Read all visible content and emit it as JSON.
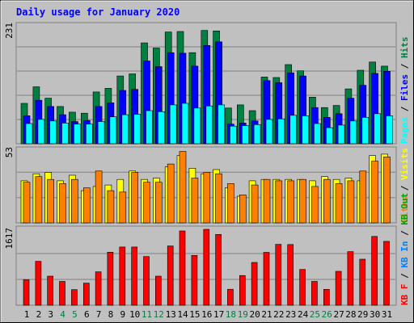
{
  "chart_data": [
    {
      "type": "bar",
      "title": "Daily usage for January 2020",
      "categories": [
        "1",
        "2",
        "3",
        "4",
        "5",
        "6",
        "7",
        "8",
        "9",
        "10",
        "11",
        "12",
        "13",
        "14",
        "15",
        "16",
        "17",
        "18",
        "19",
        "20",
        "21",
        "22",
        "23",
        "24",
        "25",
        "26",
        "27",
        "28",
        "29",
        "30",
        "31"
      ],
      "weekend_days": [
        "4",
        "5",
        "11",
        "12",
        "18",
        "19",
        "25",
        "26"
      ],
      "ymax_label": "231",
      "ylim": [
        0,
        231
      ],
      "legend_placement": "right",
      "grid": true,
      "series": [
        {
          "name": "Hits",
          "color": "#008040",
          "values": [
            78,
            110,
            88,
            72,
            61,
            59,
            100,
            107,
            131,
            135,
            195,
            185,
            216,
            217,
            176,
            219,
            218,
            69,
            75,
            64,
            129,
            128,
            153,
            141,
            90,
            70,
            74,
            106,
            142,
            158,
            150
          ]
        },
        {
          "name": "Files",
          "color": "#0000ff",
          "values": [
            54,
            84,
            72,
            56,
            43,
            45,
            72,
            79,
            103,
            105,
            160,
            149,
            176,
            175,
            150,
            190,
            197,
            38,
            40,
            44,
            122,
            118,
            137,
            131,
            70,
            51,
            58,
            88,
            113,
            136,
            140
          ]
        },
        {
          "name": "Pages",
          "color": "#00ffff",
          "values": [
            39,
            47,
            44,
            40,
            38,
            38,
            43,
            52,
            56,
            57,
            64,
            62,
            75,
            78,
            69,
            73,
            75,
            34,
            35,
            37,
            47,
            48,
            55,
            54,
            39,
            31,
            36,
            44,
            51,
            58,
            54
          ]
        }
      ]
    },
    {
      "type": "bar",
      "categories": [
        "1",
        "2",
        "3",
        "4",
        "5",
        "6",
        "7",
        "8",
        "9",
        "10",
        "11",
        "12",
        "13",
        "14",
        "15",
        "16",
        "17",
        "18",
        "19",
        "20",
        "21",
        "22",
        "23",
        "24",
        "25",
        "26",
        "27",
        "28",
        "29",
        "30",
        "31"
      ],
      "ymax_label": "53",
      "ylim": [
        0,
        53
      ],
      "legend_placement": "right",
      "grid": true,
      "series": [
        {
          "name": "Visits",
          "color": "#ffff00",
          "values": [
            30,
            35,
            36,
            30,
            34,
            23,
            26,
            27,
            31,
            37,
            31,
            32,
            40,
            48,
            39,
            35,
            38,
            25,
            19,
            30,
            31,
            31,
            31,
            31,
            30,
            33,
            31,
            32,
            30,
            48,
            49
          ]
        },
        {
          "name": "Sites",
          "color": "#ff8000",
          "values": [
            29,
            33,
            31,
            28,
            31,
            25,
            37,
            23,
            22,
            36,
            29,
            29,
            42,
            51,
            32,
            36,
            35,
            28,
            20,
            27,
            31,
            30,
            30,
            31,
            26,
            31,
            28,
            30,
            37,
            44,
            47
          ]
        }
      ]
    },
    {
      "type": "bar",
      "categories": [
        "1",
        "2",
        "3",
        "4",
        "5",
        "6",
        "7",
        "8",
        "9",
        "10",
        "11",
        "12",
        "13",
        "14",
        "15",
        "16",
        "17",
        "18",
        "19",
        "20",
        "21",
        "22",
        "23",
        "24",
        "25",
        "26",
        "27",
        "28",
        "29",
        "30",
        "31"
      ],
      "ymax_label": "1617",
      "ylim": [
        0,
        1617
      ],
      "legend_placement": "right",
      "grid": true,
      "series": [
        {
          "name": "KBytes",
          "legend_label": "KB F",
          "color": "#ff0000",
          "values": [
            544,
            936,
            620,
            508,
            332,
            471,
            712,
            1130,
            1240,
            1240,
            1037,
            619,
            1262,
            1583,
            1062,
            1617,
            1509,
            340,
            633,
            911,
            1127,
            1297,
            1294,
            762,
            508,
            339,
            722,
            1143,
            980,
            1465,
            1360
          ]
        }
      ],
      "legend_extra": [
        {
          "label": "KB In",
          "color": "#0080ff"
        },
        {
          "label": "KB Out",
          "color": "#00a000"
        }
      ]
    }
  ]
}
